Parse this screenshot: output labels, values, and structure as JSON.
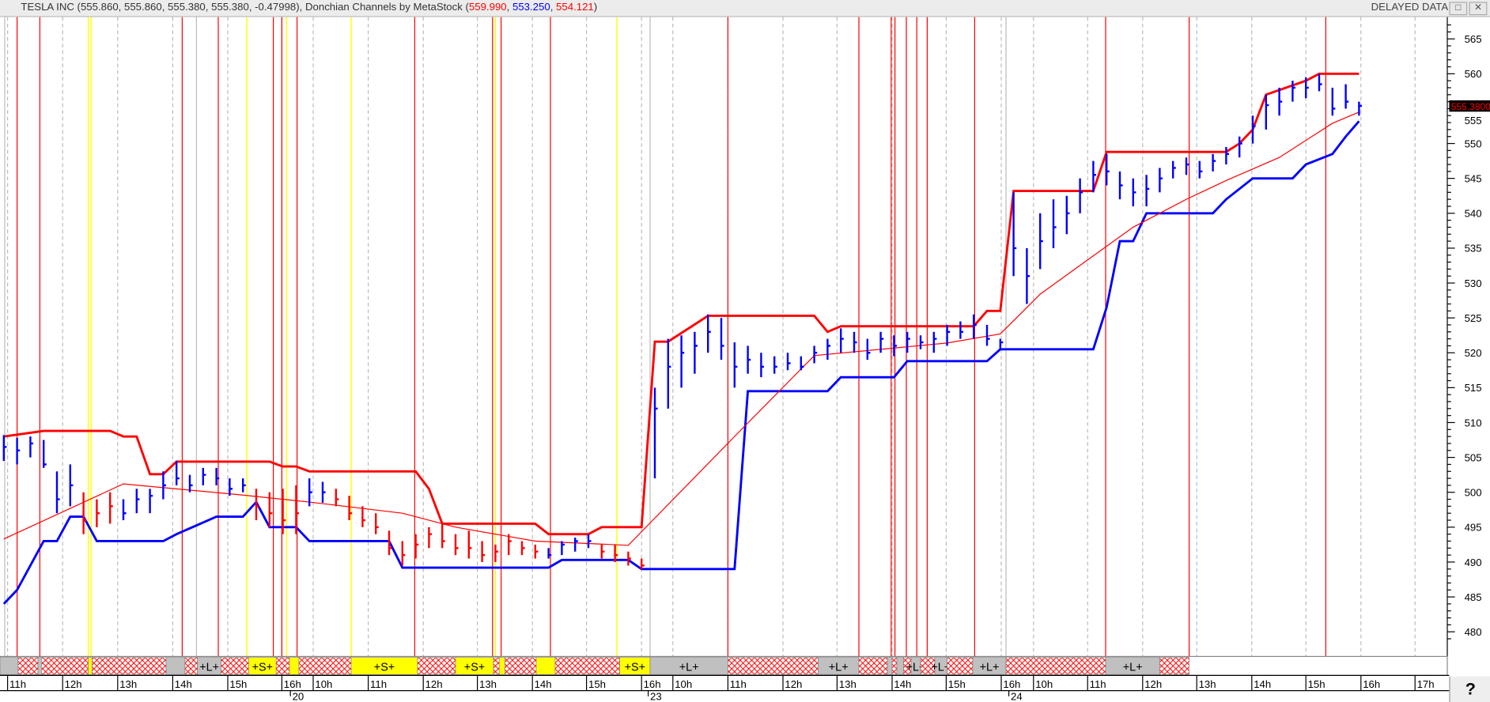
{
  "header": {
    "symbol_info": "TESLA INC (555.860, 555.860, 555.380, 555.380, -0.47998), Donchian Channels by MetaStock (",
    "upper_value": "559.990",
    "lower_value": "553.250",
    "mid_value": "554.121",
    "close_paren": ")",
    "sep": ", ",
    "delayed": "DELAYED DATA",
    "restore_icon": "restore-icon",
    "close_icon": "close-icon"
  },
  "help_button": "?",
  "chart_data": {
    "type": "bar",
    "title": "TESLA INC",
    "indicator": "Donchian Channels by MetaStock",
    "colors": {
      "upper": "#ff0000",
      "lower": "#0000ff",
      "mid": "#ff0000",
      "up_bar": "#0000ff",
      "down_bar": "#ff0000",
      "signal_red": "#ff0000",
      "signal_yellow": "#ffff00"
    },
    "ylim": [
      478,
      567
    ],
    "y_ticks": [
      "480",
      "485",
      "490",
      "495",
      "500",
      "505",
      "510",
      "515",
      "520",
      "525",
      "530",
      "535",
      "540",
      "545",
      "550",
      "555",
      "560",
      "565"
    ],
    "last_price_tag": "555.3800",
    "x_tick_labels": [
      "11h",
      "12h",
      "13h",
      "14h",
      "15h",
      "16h",
      "10h",
      "11h",
      "12h",
      "13h",
      "14h",
      "15h",
      "16h",
      "10h",
      "11h",
      "12h",
      "13h",
      "14h",
      "15h",
      "16h",
      "10h",
      "11h",
      "12h",
      "13h",
      "14h",
      "15h",
      "16h",
      "17h"
    ],
    "date_labels": [
      "20",
      "23",
      "24"
    ],
    "grid": true,
    "bars_hlc": [
      [
        508.2,
        504.5,
        506.5,
        "b"
      ],
      [
        507.8,
        504.0,
        506,
        "b"
      ],
      [
        508.0,
        505.0,
        507,
        "b"
      ],
      [
        507.5,
        503.5,
        504,
        "b"
      ],
      [
        503,
        497,
        499,
        "b"
      ],
      [
        504,
        498,
        501,
        "b"
      ],
      [
        500,
        494,
        496,
        "r"
      ],
      [
        499,
        495,
        497,
        "r"
      ],
      [
        500,
        495.5,
        498,
        "r"
      ],
      [
        499,
        496,
        497,
        "b"
      ],
      [
        500.5,
        497,
        499,
        "b"
      ],
      [
        500.5,
        497,
        499.5,
        "b"
      ],
      [
        503,
        499,
        501,
        "b"
      ],
      [
        504.5,
        501,
        502,
        "b"
      ],
      [
        502.5,
        500,
        501,
        "b"
      ],
      [
        503.5,
        501,
        502.5,
        "b"
      ],
      [
        503.5,
        501,
        502,
        "b"
      ],
      [
        502,
        499.5,
        500.5,
        "b"
      ],
      [
        502,
        500,
        501,
        "b"
      ],
      [
        500.5,
        496,
        498,
        "r"
      ],
      [
        500,
        495,
        497,
        "r"
      ],
      [
        500.5,
        494,
        496,
        "r"
      ],
      [
        501,
        494,
        497,
        "r"
      ],
      [
        502,
        498,
        500,
        "b"
      ],
      [
        501.5,
        498.5,
        500,
        "b"
      ],
      [
        500.5,
        498,
        499,
        "r"
      ],
      [
        499.5,
        496,
        497,
        "r"
      ],
      [
        498,
        495,
        496,
        "r"
      ],
      [
        497,
        494,
        495,
        "r"
      ],
      [
        494.5,
        491,
        492,
        "r"
      ],
      [
        493,
        489.5,
        491,
        "r"
      ],
      [
        494,
        490.5,
        492.5,
        "r"
      ],
      [
        495,
        492,
        494,
        "r"
      ],
      [
        495.5,
        492,
        493,
        "r"
      ],
      [
        494,
        491,
        492,
        "r"
      ],
      [
        494.5,
        490.5,
        492,
        "r"
      ],
      [
        493,
        490,
        491,
        "r"
      ],
      [
        492.5,
        490,
        491.5,
        "r"
      ],
      [
        494,
        491,
        493,
        "r"
      ],
      [
        493,
        491,
        492,
        "r"
      ],
      [
        492.5,
        490.5,
        491.5,
        "r"
      ],
      [
        492,
        490.5,
        491,
        "b"
      ],
      [
        493,
        491,
        492.5,
        "b"
      ],
      [
        493.5,
        491.5,
        493,
        "b"
      ],
      [
        494,
        492,
        493,
        "b"
      ],
      [
        492.5,
        490.5,
        491.5,
        "r"
      ],
      [
        492.5,
        490,
        491,
        "r"
      ],
      [
        491.5,
        489.5,
        490.5,
        "r"
      ],
      [
        490.5,
        489,
        489.5,
        "r"
      ],
      [
        515,
        502,
        512,
        "b"
      ],
      [
        522,
        512,
        518,
        "b"
      ],
      [
        522.5,
        515,
        520,
        "b"
      ],
      [
        523,
        517,
        521,
        "b"
      ],
      [
        525.5,
        520,
        523,
        "b"
      ],
      [
        525,
        519,
        521,
        "b"
      ],
      [
        521.5,
        515,
        518,
        "b"
      ],
      [
        521,
        517,
        519,
        "b"
      ],
      [
        520,
        516.5,
        518,
        "b"
      ],
      [
        519.5,
        517,
        518,
        "b"
      ],
      [
        520,
        517.5,
        518.5,
        "b"
      ],
      [
        519.5,
        517.5,
        518,
        "b"
      ],
      [
        521,
        518.5,
        520,
        "b"
      ],
      [
        522,
        519,
        521,
        "b"
      ],
      [
        523.5,
        520,
        522,
        "b"
      ],
      [
        523,
        520,
        521.5,
        "b"
      ],
      [
        522,
        519,
        520,
        "b"
      ],
      [
        523,
        520,
        522,
        "b"
      ],
      [
        522.5,
        519.5,
        521,
        "b"
      ],
      [
        523,
        520,
        522,
        "b"
      ],
      [
        522.5,
        520.5,
        521.5,
        "b"
      ],
      [
        523,
        520,
        522,
        "b"
      ],
      [
        524,
        521,
        523,
        "b"
      ],
      [
        524.5,
        522,
        523,
        "b"
      ],
      [
        525.5,
        522,
        524,
        "b"
      ],
      [
        524,
        521,
        522,
        "b"
      ],
      [
        522,
        520.5,
        521.5,
        "b"
      ],
      [
        543,
        531,
        535,
        "b"
      ],
      [
        535,
        527,
        531,
        "b"
      ],
      [
        540,
        532,
        536,
        "b"
      ],
      [
        542,
        535,
        538,
        "b"
      ],
      [
        542.5,
        537,
        540,
        "b"
      ],
      [
        545,
        540,
        543,
        "b"
      ],
      [
        547.5,
        543,
        545.5,
        "b"
      ],
      [
        548.5,
        544,
        546,
        "b"
      ],
      [
        546,
        542,
        544,
        "b"
      ],
      [
        545,
        541,
        543,
        "b"
      ],
      [
        545.5,
        541,
        543.5,
        "b"
      ],
      [
        546.5,
        543,
        545,
        "b"
      ],
      [
        547.5,
        545,
        546.5,
        "b"
      ],
      [
        548,
        545.5,
        547,
        "b"
      ],
      [
        547.5,
        545,
        546,
        "b"
      ],
      [
        548.5,
        546,
        547.5,
        "b"
      ],
      [
        549.5,
        547,
        548.5,
        "b"
      ],
      [
        551,
        548,
        550,
        "b"
      ],
      [
        554,
        550,
        552.5,
        "b"
      ],
      [
        557,
        552,
        555.5,
        "b"
      ],
      [
        558,
        554,
        556,
        "b"
      ],
      [
        559,
        556,
        558,
        "b"
      ],
      [
        559.5,
        556.5,
        558,
        "b"
      ],
      [
        560,
        557.5,
        558.5,
        "b"
      ],
      [
        558,
        554,
        555,
        "b"
      ],
      [
        558.5,
        555,
        556,
        "b"
      ],
      [
        556,
        554,
        555.4,
        "b"
      ]
    ],
    "series": [
      {
        "key": "upper",
        "points": [
          [
            0,
            508
          ],
          [
            3,
            508.8
          ],
          [
            8,
            508.8
          ],
          [
            9,
            508
          ],
          [
            10,
            508
          ],
          [
            11,
            502.6
          ],
          [
            12,
            502.6
          ],
          [
            13,
            504.4
          ],
          [
            20,
            504.4
          ],
          [
            21,
            503.7
          ],
          [
            22,
            503.7
          ],
          [
            23,
            503
          ],
          [
            31,
            503
          ],
          [
            32,
            500.5
          ],
          [
            33,
            495.5
          ],
          [
            40,
            495.5
          ],
          [
            41,
            494
          ],
          [
            44,
            494
          ],
          [
            45,
            495
          ],
          [
            48,
            495
          ],
          [
            49,
            521.6
          ],
          [
            50,
            521.6
          ],
          [
            53,
            525.3
          ],
          [
            61,
            525.3
          ],
          [
            62,
            523
          ],
          [
            63,
            523.8
          ],
          [
            73,
            523.8
          ],
          [
            74,
            526
          ],
          [
            75,
            526
          ],
          [
            76,
            543.2
          ],
          [
            82,
            543.2
          ],
          [
            83,
            548.8
          ],
          [
            92,
            548.8
          ],
          [
            93,
            550
          ],
          [
            94,
            552
          ],
          [
            95,
            557
          ],
          [
            98,
            559
          ],
          [
            99,
            560
          ],
          [
            102,
            560
          ]
        ]
      },
      {
        "key": "lower",
        "points": [
          [
            0,
            484
          ],
          [
            1,
            486
          ],
          [
            3,
            493
          ],
          [
            4,
            493
          ],
          [
            5,
            496.5
          ],
          [
            6,
            496.5
          ],
          [
            7,
            493
          ],
          [
            12,
            493
          ],
          [
            13,
            494
          ],
          [
            16,
            496.5
          ],
          [
            18,
            496.5
          ],
          [
            19,
            498.6
          ],
          [
            20,
            495
          ],
          [
            22,
            495
          ],
          [
            23,
            493
          ],
          [
            29,
            493
          ],
          [
            30,
            489.2
          ],
          [
            41,
            489.2
          ],
          [
            42,
            490.3
          ],
          [
            47,
            490.3
          ],
          [
            48,
            489
          ],
          [
            55,
            489
          ],
          [
            56,
            514.5
          ],
          [
            62,
            514.5
          ],
          [
            63,
            516.5
          ],
          [
            67,
            516.5
          ],
          [
            68,
            518.8
          ],
          [
            74,
            518.8
          ],
          [
            75,
            520.5
          ],
          [
            82,
            520.5
          ],
          [
            83,
            526.5
          ],
          [
            84,
            536
          ],
          [
            85,
            536
          ],
          [
            86,
            540
          ],
          [
            91,
            540
          ],
          [
            92,
            542
          ],
          [
            94,
            545
          ],
          [
            97,
            545
          ],
          [
            98,
            547
          ],
          [
            100,
            548.5
          ],
          [
            101,
            551
          ],
          [
            102,
            553.2
          ]
        ]
      },
      {
        "key": "mid",
        "points": [
          [
            0,
            493.3
          ],
          [
            9,
            501.2
          ],
          [
            18,
            499.6
          ],
          [
            23,
            498.6
          ],
          [
            30,
            497
          ],
          [
            34,
            495
          ],
          [
            40,
            493
          ],
          [
            47,
            492.4
          ],
          [
            55,
            508
          ],
          [
            61,
            519.6
          ],
          [
            71,
            521.4
          ],
          [
            75,
            522.7
          ],
          [
            78,
            528.4
          ],
          [
            82,
            533.9
          ],
          [
            85,
            538
          ],
          [
            89,
            542
          ],
          [
            92,
            544.7
          ],
          [
            96,
            548
          ],
          [
            100,
            552.9
          ],
          [
            102,
            554.5
          ]
        ]
      }
    ],
    "signal_band": [
      {
        "state": "neutral",
        "label": ""
      },
      {
        "state": "hatch",
        "label": ""
      },
      {
        "state": "neutral",
        "label": ""
      },
      {
        "state": "hatch",
        "label": ""
      },
      {
        "state": "short",
        "label": ""
      },
      {
        "state": "hatch",
        "label": ""
      },
      {
        "state": "neutral",
        "label": ""
      },
      {
        "state": "hatch",
        "label": ""
      },
      {
        "state": "long",
        "label": "+L+"
      },
      {
        "state": "hatch",
        "label": ""
      },
      {
        "state": "short",
        "label": "+S+"
      },
      {
        "state": "hatch",
        "label": ""
      },
      {
        "state": "short",
        "label": ""
      },
      {
        "state": "hatch",
        "label": ""
      },
      {
        "state": "short",
        "label": "+S+"
      },
      {
        "state": "hatch",
        "label": ""
      },
      {
        "state": "short",
        "label": "+S+"
      },
      {
        "state": "hatch",
        "label": ""
      },
      {
        "state": "short",
        "label": ""
      },
      {
        "state": "hatch",
        "label": ""
      },
      {
        "state": "short",
        "label": ""
      },
      {
        "state": "hatch",
        "label": ""
      },
      {
        "state": "short",
        "label": "+S+"
      },
      {
        "state": "long",
        "label": "+L+"
      },
      {
        "state": "hatch",
        "label": ""
      },
      {
        "state": "long",
        "label": "+L+"
      },
      {
        "state": "hatch",
        "label": ""
      },
      {
        "state": "long",
        "label": ""
      },
      {
        "state": "hatch",
        "label": ""
      },
      {
        "state": "long",
        "label": ""
      },
      {
        "state": "hatch",
        "label": ""
      },
      {
        "state": "long",
        "label": "+L+"
      },
      {
        "state": "hatch",
        "label": ""
      },
      {
        "state": "long",
        "label": "+L+"
      },
      {
        "state": "hatch",
        "label": ""
      },
      {
        "state": "long",
        "label": "+L+"
      },
      {
        "state": "hatch",
        "label": ""
      },
      {
        "state": "long",
        "label": "+L+"
      },
      {
        "state": "hatch",
        "label": ""
      }
    ]
  }
}
